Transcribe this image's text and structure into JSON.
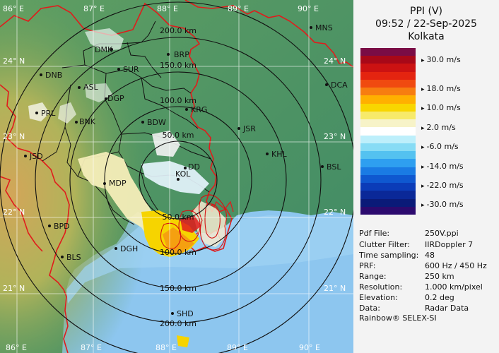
{
  "map": {
    "grid_labels": {
      "lon_top": [
        "86° E",
        "87° E",
        "88° E",
        "89° E",
        "90° E"
      ],
      "lon_bottom": [
        "86° E",
        "87° E",
        "88° E",
        "89° E",
        "90° E"
      ],
      "lat_left": [
        "24° N",
        "23° N",
        "22° N",
        "21° N"
      ],
      "lat_right": [
        "24° N",
        "23° N",
        "22° N",
        "21° N"
      ]
    },
    "range_rings": [
      "50.0 km",
      "100.0 km",
      "150.0 km",
      "200.0 km"
    ],
    "range_rings_south": [
      "50.0 km",
      "100.0 km",
      "150.0 km",
      "200.0 km"
    ],
    "stations": [
      {
        "code": "MNS"
      },
      {
        "code": "DMK"
      },
      {
        "code": "BRP"
      },
      {
        "code": "SUR"
      },
      {
        "code": "DNB"
      },
      {
        "code": "ASL"
      },
      {
        "code": "DGP"
      },
      {
        "code": "DCA"
      },
      {
        "code": "KRG"
      },
      {
        "code": "PRL"
      },
      {
        "code": "BNK"
      },
      {
        "code": "BDW"
      },
      {
        "code": "JSR"
      },
      {
        "code": "KHL"
      },
      {
        "code": "JSD"
      },
      {
        "code": "BSL"
      },
      {
        "code": "MDP"
      },
      {
        "code": "KOL"
      },
      {
        "code": "DD"
      },
      {
        "code": "BPD"
      },
      {
        "code": "DGH"
      },
      {
        "code": "BLS"
      },
      {
        "code": "SHD"
      }
    ],
    "colors": {
      "sea": "#8dc6ef",
      "land_low": "#4f9a6a",
      "land_high": "#c9a15b",
      "borders": "#e01c1c",
      "districts": "#111111",
      "rings": "#111111"
    }
  },
  "panel": {
    "product": "PPI (V)",
    "datetime": "09:52 / 22-Sep-2025",
    "site": "Kolkata",
    "legend": {
      "colors": [
        "#7a0c45",
        "#a80818",
        "#cc1212",
        "#e42410",
        "#f04a10",
        "#f77d10",
        "#ffb000",
        "#f8d600",
        "#f7ea6a",
        "#f7f3c8",
        "#ffffff",
        "#bdeffb",
        "#87dcf5",
        "#54c2f0",
        "#2e9ff0",
        "#1a7be4",
        "#0f58d0",
        "#0b3cb8",
        "#0a2898",
        "#0a1a78",
        "#2c0a6e"
      ],
      "labels": [
        "30.0 m/s",
        "18.0 m/s",
        "10.0 m/s",
        "2.0 m/s",
        "-6.0 m/s",
        "-14.0 m/s",
        "-22.0 m/s",
        "-30.0 m/s"
      ]
    },
    "meta": [
      {
        "k": "Pdf File:",
        "v": "250V.ppi"
      },
      {
        "k": "Clutter Filter:",
        "v": "IIRDoppler 7"
      },
      {
        "k": "Time sampling:",
        "v": "48"
      },
      {
        "k": "PRF:",
        "v": "600 Hz / 450 Hz"
      },
      {
        "k": "Range:",
        "v": "250 km"
      },
      {
        "k": "Resolution:",
        "v": "1.000 km/pixel"
      },
      {
        "k": "Elevation:",
        "v": "0.2 deg"
      },
      {
        "k": "Data:",
        "v": "Radar Data"
      }
    ],
    "footer": "Rainbow® SELEX-SI"
  }
}
